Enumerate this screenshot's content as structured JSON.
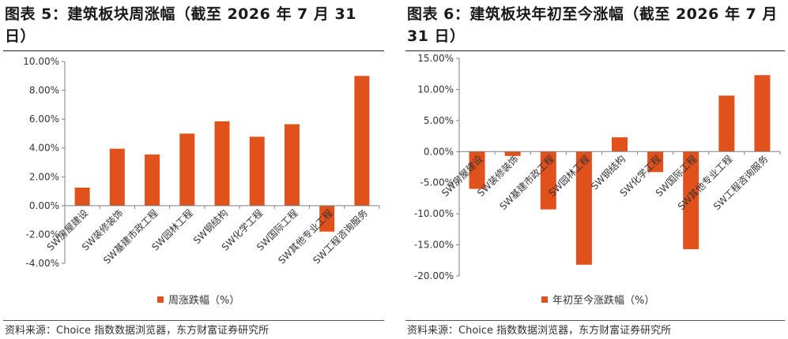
{
  "colors": {
    "bar": "#e0511c",
    "axis": "#7f7f7f",
    "text": "#333333"
  },
  "panels": [
    {
      "title": "图表 5：建筑板块周涨幅（截至 2026 年 7 月 31 日）",
      "legend": "周涨跌幅（%）",
      "source": "资料来源：Choice 指数数据浏览器，东方财富证券研究所"
    },
    {
      "title": "图表 6：建筑板块年初至今涨幅（截至 2026 年 7 月 31 日）",
      "legend": "年初至今涨跌幅（%）",
      "source": "资料来源：Choice 指数数据浏览器，东方财富证券研究所"
    }
  ],
  "chart_data": [
    {
      "type": "bar",
      "title": "图表 5：建筑板块周涨幅（截至 2026 年 7 月 31 日）",
      "categories": [
        "SW房屋建设",
        "SW装修装饰",
        "SW基建市政工程",
        "SW园林工程",
        "SW钢结构",
        "SW化学工程",
        "SW国际工程",
        "SW其他专业工程",
        "SW工程咨询服务"
      ],
      "series": [
        {
          "name": "周涨跌幅（%）",
          "values": [
            1.25,
            3.95,
            3.55,
            5.0,
            5.85,
            4.78,
            5.65,
            -1.8,
            9.0
          ]
        }
      ],
      "ylim": [
        -4,
        10
      ],
      "yticks": [
        10,
        8,
        6,
        4,
        2,
        0,
        -2,
        -4
      ],
      "ytick_labels": [
        "10.00%",
        "8.00%",
        "6.00%",
        "4.00%",
        "2.00%",
        "0.00%",
        "-2.00%",
        "-4.00%"
      ],
      "legend_position": "bottom",
      "grid": false
    },
    {
      "type": "bar",
      "title": "图表 6：建筑板块年初至今涨幅（截至 2026 年 7 月 31 日）",
      "categories": [
        "SW房屋建设",
        "SW装修装饰",
        "SW基建市政工程",
        "SW园林工程",
        "SW钢结构",
        "SW化学工程",
        "SW国际工程",
        "SW其他专业工程",
        "SW工程咨询服务"
      ],
      "series": [
        {
          "name": "年初至今涨跌幅（%）",
          "values": [
            -6.0,
            -0.7,
            -9.3,
            -18.2,
            2.3,
            -3.3,
            -15.7,
            9.0,
            12.3
          ]
        }
      ],
      "ylim": [
        -20,
        15
      ],
      "yticks": [
        15,
        10,
        5,
        0,
        -5,
        -10,
        -15,
        -20
      ],
      "ytick_labels": [
        "15.00%",
        "10.00%",
        "5.00%",
        "0.00%",
        "-5.00%",
        "-10.00%",
        "-15.00%",
        "-20.00%"
      ],
      "legend_position": "bottom",
      "grid": false
    }
  ]
}
